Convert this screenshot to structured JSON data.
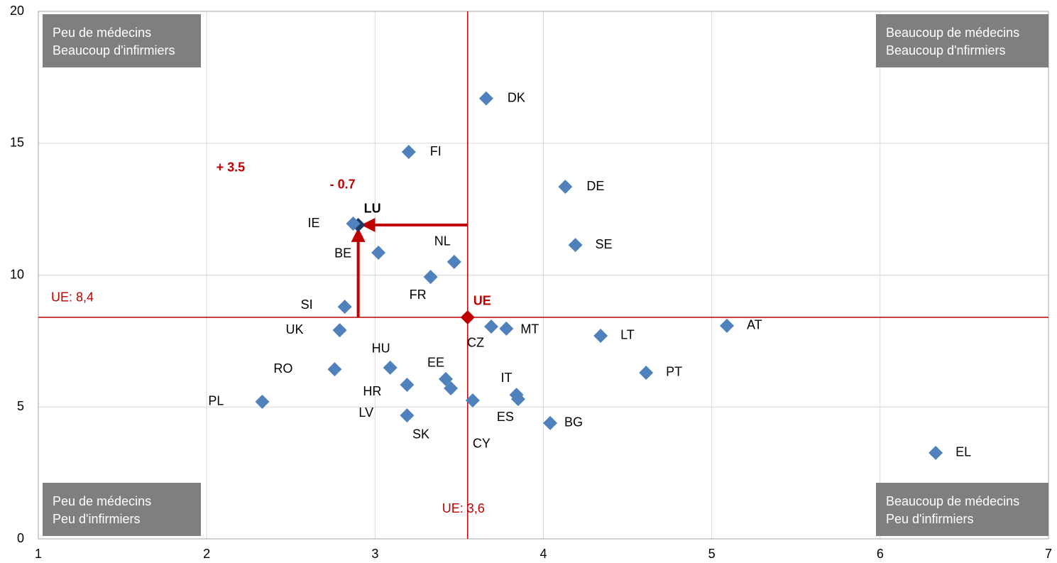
{
  "chart_data": {
    "type": "scatter",
    "labels": [
      "DK",
      "FI",
      "DE",
      "LU",
      "IE",
      "BE",
      "NL",
      "SE",
      "FR",
      "SI",
      "UE",
      "UK",
      "CZ",
      "MT",
      "LT",
      "AT",
      "HU",
      "RO",
      "EE",
      "SK",
      "HR",
      "LV",
      "CY",
      "ES",
      "IT",
      "BG",
      "PT",
      "PL",
      "EL"
    ],
    "x": [
      3.66,
      3.2,
      4.13,
      2.9,
      2.87,
      3.02,
      3.47,
      4.19,
      3.33,
      2.82,
      3.55,
      2.79,
      3.69,
      3.78,
      4.34,
      5.09,
      3.09,
      2.76,
      3.42,
      3.45,
      3.19,
      3.19,
      3.58,
      3.85,
      3.84,
      4.04,
      4.61,
      2.33,
      6.33
    ],
    "values": [
      16.7,
      14.67,
      13.35,
      11.9,
      11.95,
      10.85,
      10.5,
      11.14,
      9.93,
      8.8,
      8.4,
      7.91,
      8.05,
      7.97,
      7.7,
      8.08,
      6.49,
      6.43,
      6.06,
      5.71,
      5.84,
      4.68,
      5.25,
      5.3,
      5.46,
      4.39,
      6.3,
      5.2,
      3.26
    ],
    "color": "#4f81bd",
    "highlight_colors": {
      "3": "#1f3864",
      "10": "#c00000"
    },
    "xlim": [
      1,
      7
    ],
    "xticks": [
      1,
      2,
      3,
      4,
      5,
      6,
      7
    ],
    "ylim": [
      0,
      20
    ],
    "yticks": [
      0,
      5,
      10,
      15,
      20
    ],
    "grid": true,
    "ref_lines": [
      {
        "axis": "x",
        "value": 3.55,
        "label": "UE: 3,6",
        "color": "#c00000"
      },
      {
        "axis": "y",
        "value": 8.4,
        "label": "UE: 8,4",
        "color": "#c00000"
      }
    ],
    "arrows": [
      {
        "x": [
          2.9,
          2.9
        ],
        "y": [
          8.4,
          11.9
        ],
        "label": "+ 3.5"
      },
      {
        "x": [
          3.55,
          2.9
        ],
        "y": [
          11.9,
          11.9
        ],
        "label": "- 0.7"
      }
    ],
    "quadrants": [
      {
        "corner": "top-left",
        "lines": [
          "Peu de médecins",
          "Beaucoup d'infirmiers"
        ]
      },
      {
        "corner": "top-right",
        "lines": [
          "Beaucoup de médecins",
          "Beaucoup d'nfirmiers"
        ]
      },
      {
        "corner": "bottom-left",
        "lines": [
          "Peu de médecins",
          "Peu d'infirmiers"
        ]
      },
      {
        "corner": "bottom-right",
        "lines": [
          "Beaucoup de médecins",
          "Peu d'infirmiers"
        ]
      }
    ]
  }
}
